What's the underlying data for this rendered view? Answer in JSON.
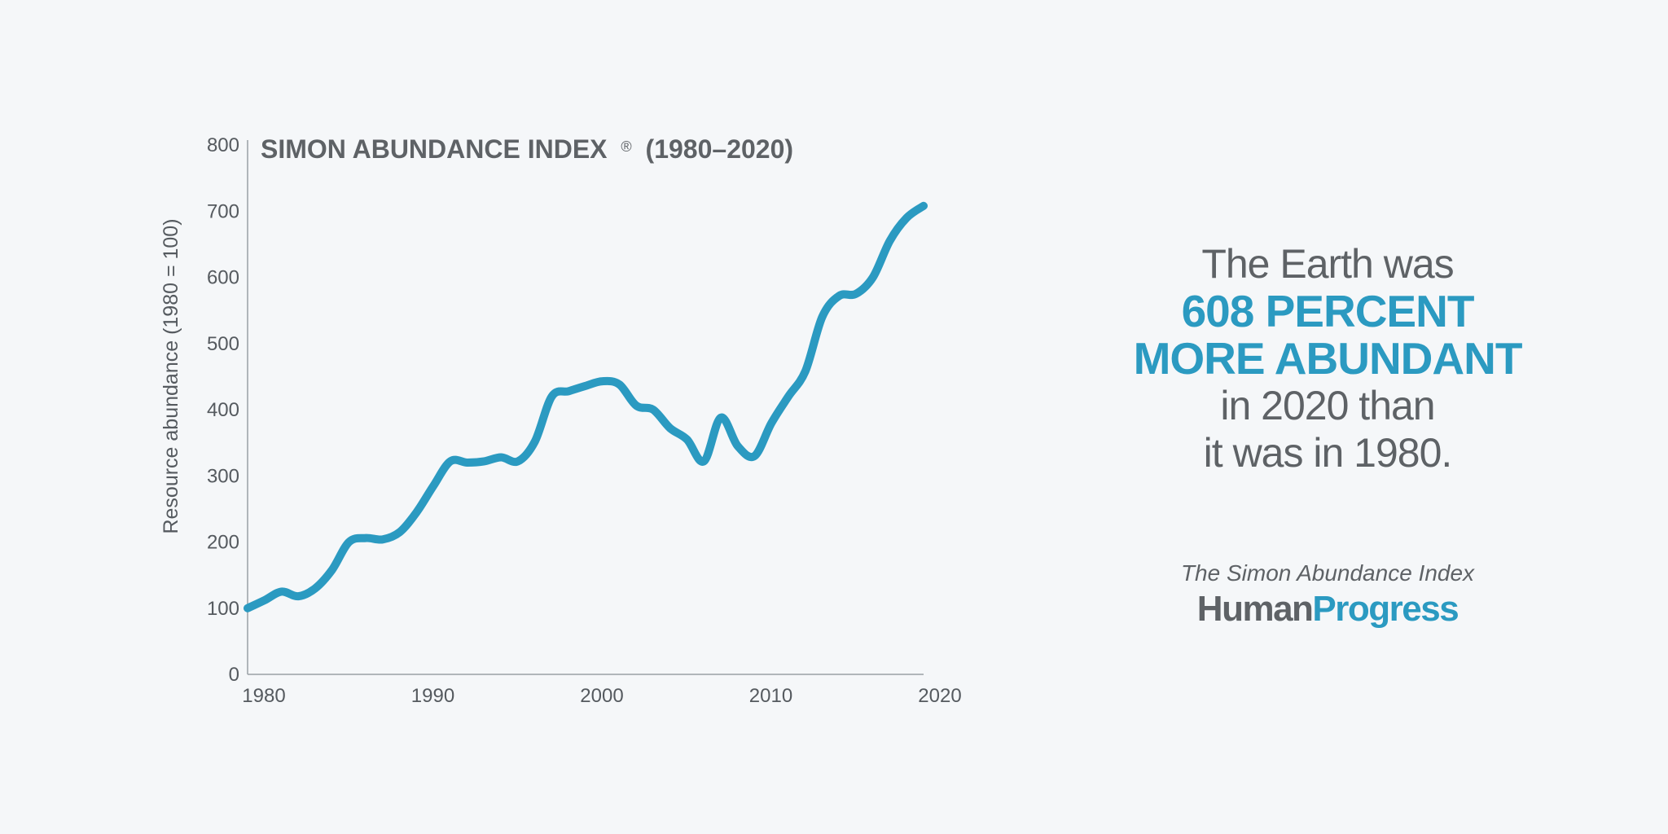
{
  "headline": {
    "line1": "The Earth was",
    "line2": "608 PERCENT",
    "line3": "MORE ABUNDANT",
    "line4": "in 2020 than",
    "line5": "it was in 1980."
  },
  "brand": {
    "subtitle": "The Simon Abundance Index",
    "logo_part1": "Human",
    "logo_part2": "Progress"
  },
  "colors": {
    "accent": "#2b9ac1",
    "text": "#5e6266",
    "background": "#f5f7f9"
  },
  "chart_data": {
    "type": "line",
    "title": "SIMON ABUNDANCE INDEX",
    "title_mark": "®",
    "title_range": "(1980–2020)",
    "xlabel": "",
    "ylabel": "Resource abundance (1980 = 100)",
    "xlim": [
      1980,
      2020
    ],
    "ylim": [
      0,
      800
    ],
    "xticks": [
      1980,
      1990,
      2000,
      2010,
      2020
    ],
    "yticks": [
      0,
      100,
      200,
      300,
      400,
      500,
      600,
      700,
      800
    ],
    "grid": false,
    "series": [
      {
        "x": [
          1980,
          1981,
          1982,
          1983,
          1984,
          1985,
          1986,
          1987,
          1988,
          1989,
          1990,
          1991,
          1992,
          1993,
          1994,
          1995,
          1996,
          1997,
          1998,
          1999,
          2000,
          2001,
          2002,
          2003,
          2004,
          2005,
          2006,
          2007,
          2008,
          2009,
          2010,
          2011,
          2012,
          2013,
          2014,
          2015,
          2016,
          2017,
          2018,
          2019,
          2020
        ],
        "values": [
          100,
          112,
          125,
          118,
          130,
          158,
          200,
          206,
          204,
          215,
          245,
          285,
          322,
          320,
          322,
          328,
          322,
          352,
          420,
          428,
          436,
          443,
          438,
          406,
          400,
          372,
          355,
          322,
          388,
          345,
          330,
          380,
          420,
          458,
          540,
          572,
          575,
          600,
          655,
          690,
          708
        ]
      }
    ]
  }
}
